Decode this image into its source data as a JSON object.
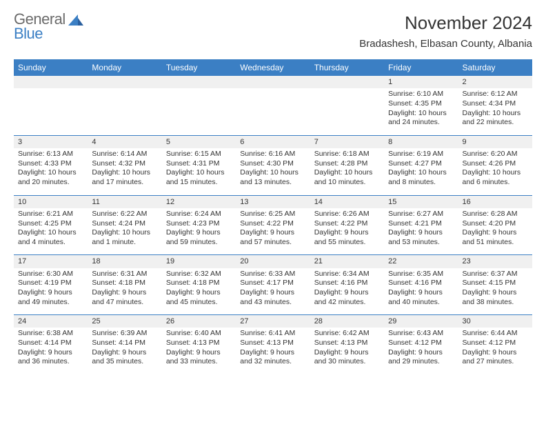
{
  "logo": {
    "part1": "General",
    "part2": "Blue"
  },
  "title": "November 2024",
  "location": "Bradashesh, Elbasan County, Albania",
  "colors": {
    "header_bg": "#3b7fc4",
    "header_text": "#ffffff",
    "daynum_bg": "#f0f0f0",
    "row_divider": "#3b7fc4",
    "text": "#333333",
    "logo_gray": "#6b6b6b",
    "logo_blue": "#3b7fc4"
  },
  "weekdays": [
    "Sunday",
    "Monday",
    "Tuesday",
    "Wednesday",
    "Thursday",
    "Friday",
    "Saturday"
  ],
  "weeks": [
    [
      null,
      null,
      null,
      null,
      null,
      {
        "d": "1",
        "sr": "Sunrise: 6:10 AM",
        "ss": "Sunset: 4:35 PM",
        "dl1": "Daylight: 10 hours",
        "dl2": "and 24 minutes."
      },
      {
        "d": "2",
        "sr": "Sunrise: 6:12 AM",
        "ss": "Sunset: 4:34 PM",
        "dl1": "Daylight: 10 hours",
        "dl2": "and 22 minutes."
      }
    ],
    [
      {
        "d": "3",
        "sr": "Sunrise: 6:13 AM",
        "ss": "Sunset: 4:33 PM",
        "dl1": "Daylight: 10 hours",
        "dl2": "and 20 minutes."
      },
      {
        "d": "4",
        "sr": "Sunrise: 6:14 AM",
        "ss": "Sunset: 4:32 PM",
        "dl1": "Daylight: 10 hours",
        "dl2": "and 17 minutes."
      },
      {
        "d": "5",
        "sr": "Sunrise: 6:15 AM",
        "ss": "Sunset: 4:31 PM",
        "dl1": "Daylight: 10 hours",
        "dl2": "and 15 minutes."
      },
      {
        "d": "6",
        "sr": "Sunrise: 6:16 AM",
        "ss": "Sunset: 4:30 PM",
        "dl1": "Daylight: 10 hours",
        "dl2": "and 13 minutes."
      },
      {
        "d": "7",
        "sr": "Sunrise: 6:18 AM",
        "ss": "Sunset: 4:28 PM",
        "dl1": "Daylight: 10 hours",
        "dl2": "and 10 minutes."
      },
      {
        "d": "8",
        "sr": "Sunrise: 6:19 AM",
        "ss": "Sunset: 4:27 PM",
        "dl1": "Daylight: 10 hours",
        "dl2": "and 8 minutes."
      },
      {
        "d": "9",
        "sr": "Sunrise: 6:20 AM",
        "ss": "Sunset: 4:26 PM",
        "dl1": "Daylight: 10 hours",
        "dl2": "and 6 minutes."
      }
    ],
    [
      {
        "d": "10",
        "sr": "Sunrise: 6:21 AM",
        "ss": "Sunset: 4:25 PM",
        "dl1": "Daylight: 10 hours",
        "dl2": "and 4 minutes."
      },
      {
        "d": "11",
        "sr": "Sunrise: 6:22 AM",
        "ss": "Sunset: 4:24 PM",
        "dl1": "Daylight: 10 hours",
        "dl2": "and 1 minute."
      },
      {
        "d": "12",
        "sr": "Sunrise: 6:24 AM",
        "ss": "Sunset: 4:23 PM",
        "dl1": "Daylight: 9 hours",
        "dl2": "and 59 minutes."
      },
      {
        "d": "13",
        "sr": "Sunrise: 6:25 AM",
        "ss": "Sunset: 4:22 PM",
        "dl1": "Daylight: 9 hours",
        "dl2": "and 57 minutes."
      },
      {
        "d": "14",
        "sr": "Sunrise: 6:26 AM",
        "ss": "Sunset: 4:22 PM",
        "dl1": "Daylight: 9 hours",
        "dl2": "and 55 minutes."
      },
      {
        "d": "15",
        "sr": "Sunrise: 6:27 AM",
        "ss": "Sunset: 4:21 PM",
        "dl1": "Daylight: 9 hours",
        "dl2": "and 53 minutes."
      },
      {
        "d": "16",
        "sr": "Sunrise: 6:28 AM",
        "ss": "Sunset: 4:20 PM",
        "dl1": "Daylight: 9 hours",
        "dl2": "and 51 minutes."
      }
    ],
    [
      {
        "d": "17",
        "sr": "Sunrise: 6:30 AM",
        "ss": "Sunset: 4:19 PM",
        "dl1": "Daylight: 9 hours",
        "dl2": "and 49 minutes."
      },
      {
        "d": "18",
        "sr": "Sunrise: 6:31 AM",
        "ss": "Sunset: 4:18 PM",
        "dl1": "Daylight: 9 hours",
        "dl2": "and 47 minutes."
      },
      {
        "d": "19",
        "sr": "Sunrise: 6:32 AM",
        "ss": "Sunset: 4:18 PM",
        "dl1": "Daylight: 9 hours",
        "dl2": "and 45 minutes."
      },
      {
        "d": "20",
        "sr": "Sunrise: 6:33 AM",
        "ss": "Sunset: 4:17 PM",
        "dl1": "Daylight: 9 hours",
        "dl2": "and 43 minutes."
      },
      {
        "d": "21",
        "sr": "Sunrise: 6:34 AM",
        "ss": "Sunset: 4:16 PM",
        "dl1": "Daylight: 9 hours",
        "dl2": "and 42 minutes."
      },
      {
        "d": "22",
        "sr": "Sunrise: 6:35 AM",
        "ss": "Sunset: 4:16 PM",
        "dl1": "Daylight: 9 hours",
        "dl2": "and 40 minutes."
      },
      {
        "d": "23",
        "sr": "Sunrise: 6:37 AM",
        "ss": "Sunset: 4:15 PM",
        "dl1": "Daylight: 9 hours",
        "dl2": "and 38 minutes."
      }
    ],
    [
      {
        "d": "24",
        "sr": "Sunrise: 6:38 AM",
        "ss": "Sunset: 4:14 PM",
        "dl1": "Daylight: 9 hours",
        "dl2": "and 36 minutes."
      },
      {
        "d": "25",
        "sr": "Sunrise: 6:39 AM",
        "ss": "Sunset: 4:14 PM",
        "dl1": "Daylight: 9 hours",
        "dl2": "and 35 minutes."
      },
      {
        "d": "26",
        "sr": "Sunrise: 6:40 AM",
        "ss": "Sunset: 4:13 PM",
        "dl1": "Daylight: 9 hours",
        "dl2": "and 33 minutes."
      },
      {
        "d": "27",
        "sr": "Sunrise: 6:41 AM",
        "ss": "Sunset: 4:13 PM",
        "dl1": "Daylight: 9 hours",
        "dl2": "and 32 minutes."
      },
      {
        "d": "28",
        "sr": "Sunrise: 6:42 AM",
        "ss": "Sunset: 4:13 PM",
        "dl1": "Daylight: 9 hours",
        "dl2": "and 30 minutes."
      },
      {
        "d": "29",
        "sr": "Sunrise: 6:43 AM",
        "ss": "Sunset: 4:12 PM",
        "dl1": "Daylight: 9 hours",
        "dl2": "and 29 minutes."
      },
      {
        "d": "30",
        "sr": "Sunrise: 6:44 AM",
        "ss": "Sunset: 4:12 PM",
        "dl1": "Daylight: 9 hours",
        "dl2": "and 27 minutes."
      }
    ]
  ]
}
